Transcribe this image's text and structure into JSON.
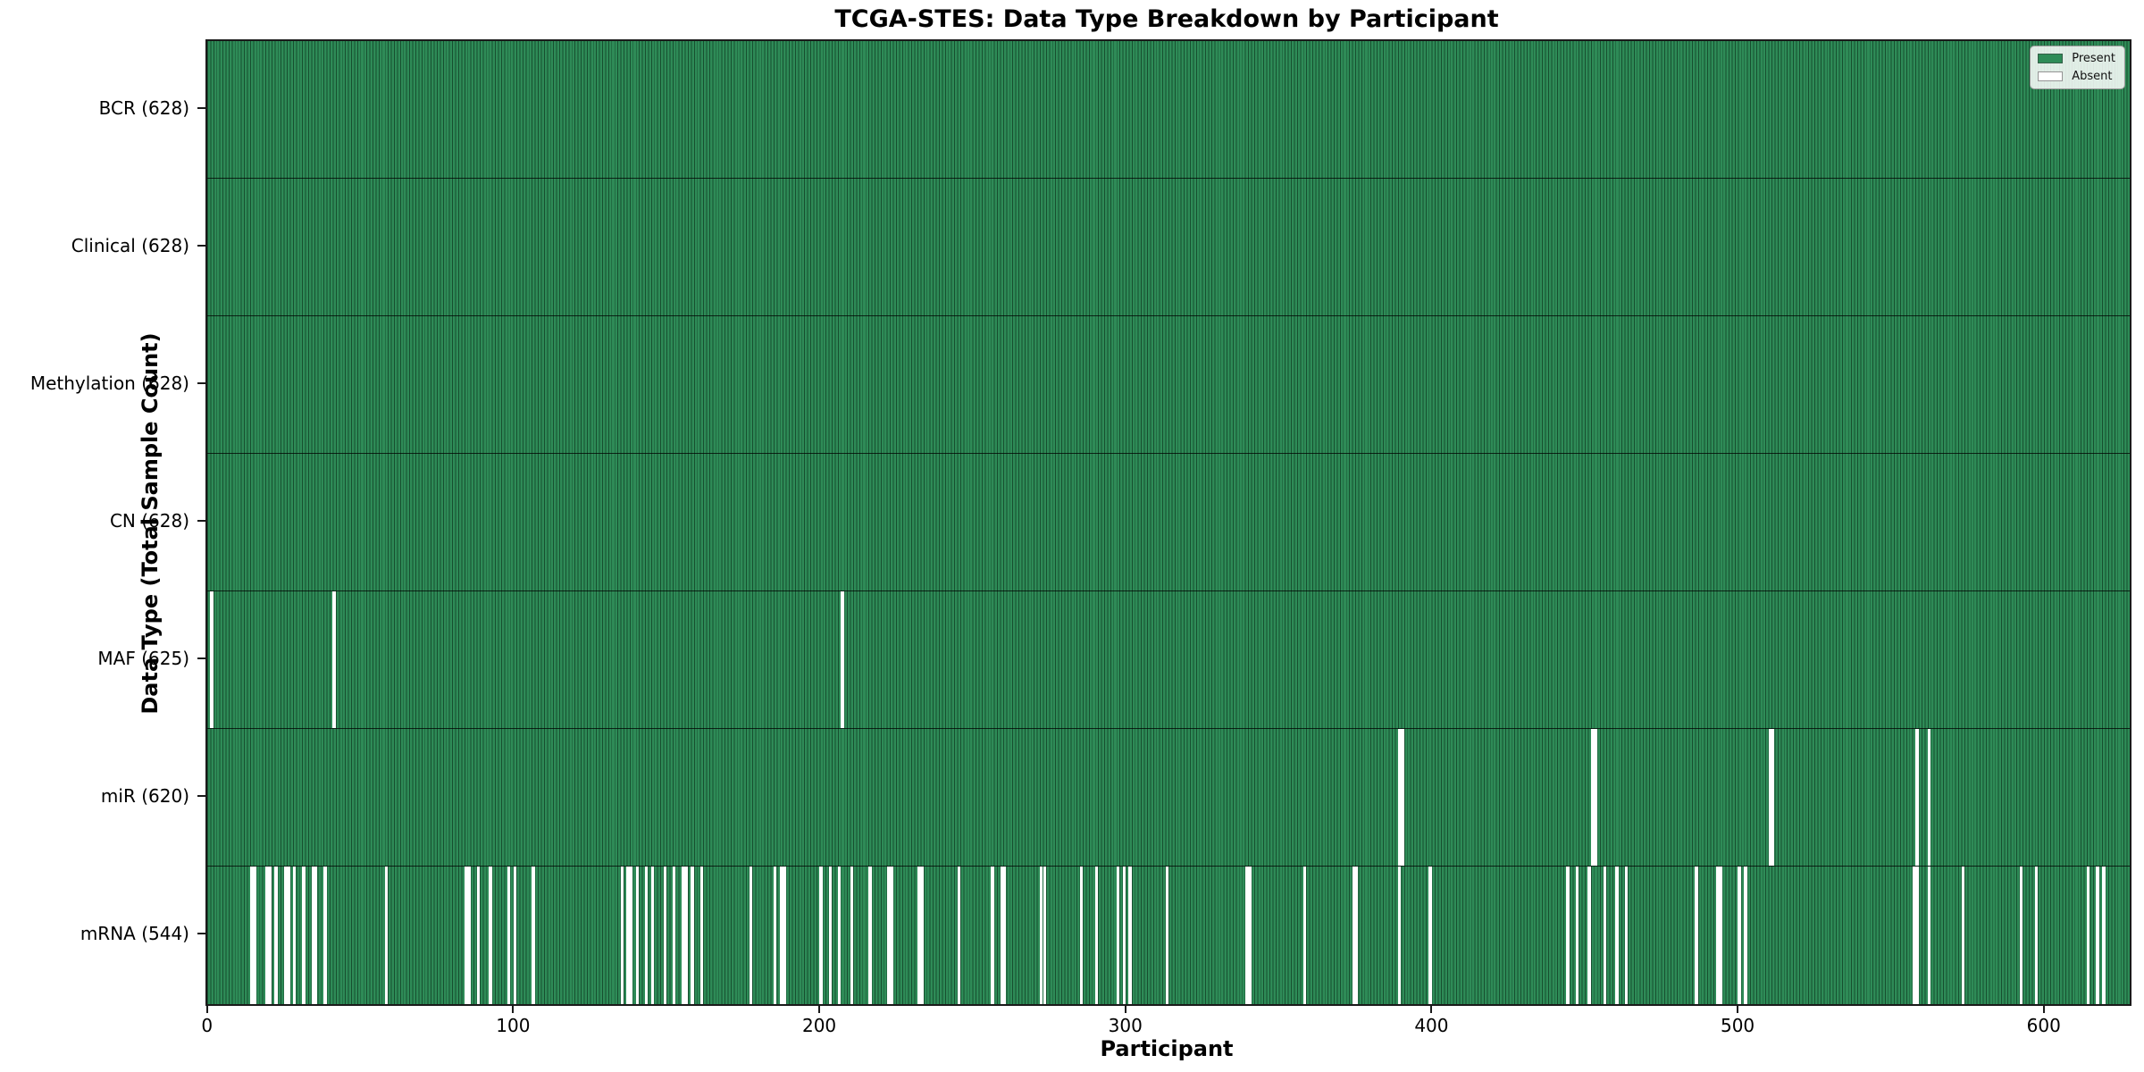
{
  "title": "TCGA-STES: Data Type Breakdown by Participant",
  "axes": {
    "xlabel": "Participant",
    "ylabel": "Data Type (Total Sample Count)",
    "x_ticks": [
      0,
      100,
      200,
      300,
      400,
      500,
      600
    ]
  },
  "legend": {
    "items": [
      {
        "label": "Present",
        "color": "#2e8b57"
      },
      {
        "label": "Absent",
        "color": "#ffffff"
      }
    ]
  },
  "colors": {
    "present": "#2e8b57",
    "absent": "#ffffff",
    "bar_edge": "#1e5336",
    "spine": "#1a1a1a"
  },
  "chart_data": {
    "type": "heatmap",
    "subtype": "presence-absence-matrix",
    "title": "TCGA-STES: Data Type Breakdown by Participant",
    "xlabel": "Participant",
    "ylabel": "Data Type (Total Sample Count)",
    "n_participants": 628,
    "xlim": [
      -0.5,
      627.5
    ],
    "x_ticks": [
      0,
      100,
      200,
      300,
      400,
      500,
      600
    ],
    "legend_position": "upper right",
    "grid": false,
    "rows": [
      {
        "name": "BCR",
        "label": "BCR (628)",
        "present_count": 628,
        "absent_participants": []
      },
      {
        "name": "Clinical",
        "label": "Clinical (628)",
        "present_count": 628,
        "absent_participants": []
      },
      {
        "name": "Methylation",
        "label": "Methylation (628)",
        "present_count": 628,
        "absent_participants": []
      },
      {
        "name": "CN",
        "label": "CN (628)",
        "present_count": 628,
        "absent_participants": []
      },
      {
        "name": "MAF",
        "label": "MAF (625)",
        "present_count": 625,
        "absent_participants": [
          1,
          41,
          207
        ]
      },
      {
        "name": "miR",
        "label": "miR (620)",
        "present_count": 620,
        "absent_participants": [
          389,
          390,
          452,
          453,
          510,
          511,
          558,
          562
        ]
      },
      {
        "name": "mRNA",
        "label": "mRNA (544)",
        "present_count": 544,
        "absent_participants": [
          14,
          15,
          19,
          20,
          22,
          25,
          26,
          28,
          31,
          34,
          35,
          38,
          58,
          84,
          85,
          88,
          92,
          98,
          100,
          106,
          135,
          137,
          138,
          140,
          143,
          145,
          149,
          152,
          155,
          156,
          158,
          161,
          177,
          185,
          187,
          188,
          200,
          203,
          206,
          210,
          216,
          222,
          223,
          232,
          233,
          245,
          256,
          259,
          260,
          272,
          273,
          285,
          290,
          297,
          299,
          301,
          313,
          339,
          340,
          358,
          374,
          375,
          389,
          399,
          444,
          447,
          451,
          456,
          460,
          463,
          486,
          493,
          494,
          500,
          502,
          557,
          558,
          562,
          573,
          592,
          597,
          614,
          617,
          619
        ]
      }
    ]
  }
}
